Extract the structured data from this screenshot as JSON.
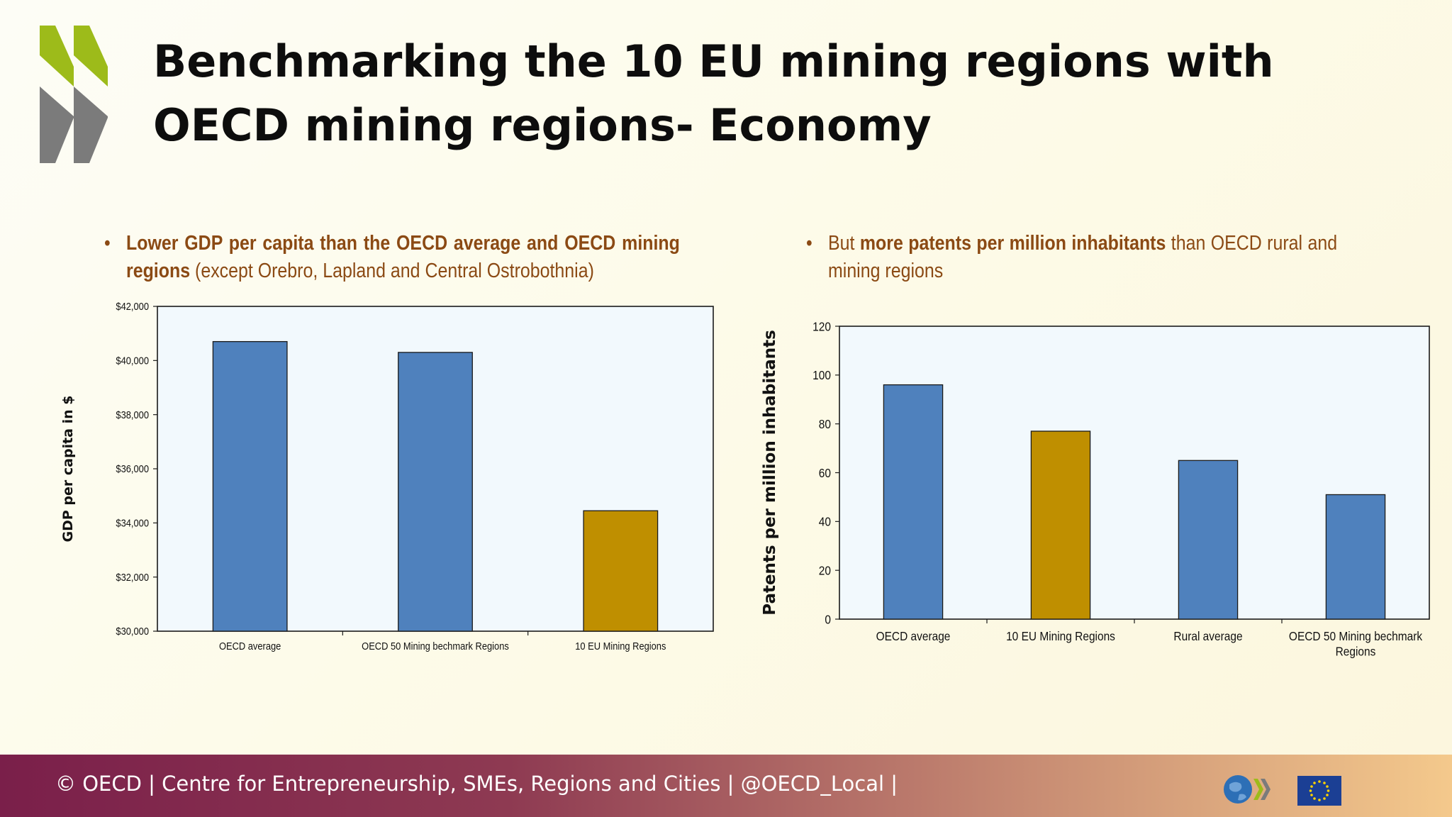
{
  "slide": {
    "title": "Benchmarking the 10 EU mining regions with OECD mining regions- Economy"
  },
  "bullets": {
    "left": {
      "bold_part": "Lower GDP per capita than the OECD average and OECD mining regions",
      "normal_part": " (except Orebro, Lapland and Central Ostrobothnia)"
    },
    "right": {
      "pre": "But ",
      "bold_part": "more patents per million inhabitants",
      "normal_part": " than OECD rural and mining  regions"
    }
  },
  "footer": {
    "text": "© OECD | Centre for Entrepreneurship, SMEs, Regions and Cities | @OECD_Local |"
  },
  "icons": {
    "logo": "oecd-chevron-logo",
    "globe": "oecd-globe-icon",
    "flag": "eu-flag-icon"
  },
  "colors": {
    "blue_bar": "#4f81bd",
    "gold_bar": "#bf8f00",
    "plot_bg": "#f2f9fd",
    "bullet_text": "#8b4a14",
    "footer_start": "#7a1f4a",
    "footer_end": "#f4c98c",
    "logo_green": "#9dbb1a",
    "logo_grey": "#7b7b7b"
  },
  "chart_data": [
    {
      "type": "bar",
      "categories": [
        "OECD average",
        "OECD 50 Mining bechmark Regions",
        "10 EU Mining Regions"
      ],
      "values": [
        40700,
        40300,
        34450
      ],
      "bar_colors": [
        "#4f81bd",
        "#4f81bd",
        "#bf8f00"
      ],
      "title": "",
      "xlabel": "",
      "ylabel": "GDP per capita  in $",
      "ylim": [
        30000,
        42000
      ],
      "yticks": [
        30000,
        32000,
        34000,
        36000,
        38000,
        40000,
        42000
      ],
      "ytick_labels": [
        "$30,000",
        "$32,000",
        "$34,000",
        "$36,000",
        "$38,000",
        "$40,000",
        "$42,000"
      ],
      "grid": false,
      "legend": "none"
    },
    {
      "type": "bar",
      "categories": [
        "OECD average",
        "10 EU Mining Regions",
        "Rural average",
        "OECD 50 Mining bechmark Regions"
      ],
      "values": [
        96,
        77,
        65,
        51
      ],
      "bar_colors": [
        "#4f81bd",
        "#bf8f00",
        "#4f81bd",
        "#4f81bd"
      ],
      "title": "",
      "xlabel": "",
      "ylabel": "Patents per million inhabitants",
      "ylim": [
        0,
        120
      ],
      "yticks": [
        0,
        20,
        40,
        60,
        80,
        100,
        120
      ],
      "ytick_labels": [
        "0",
        "20",
        "40",
        "60",
        "80",
        "100",
        "120"
      ],
      "grid": false,
      "legend": "none"
    }
  ]
}
